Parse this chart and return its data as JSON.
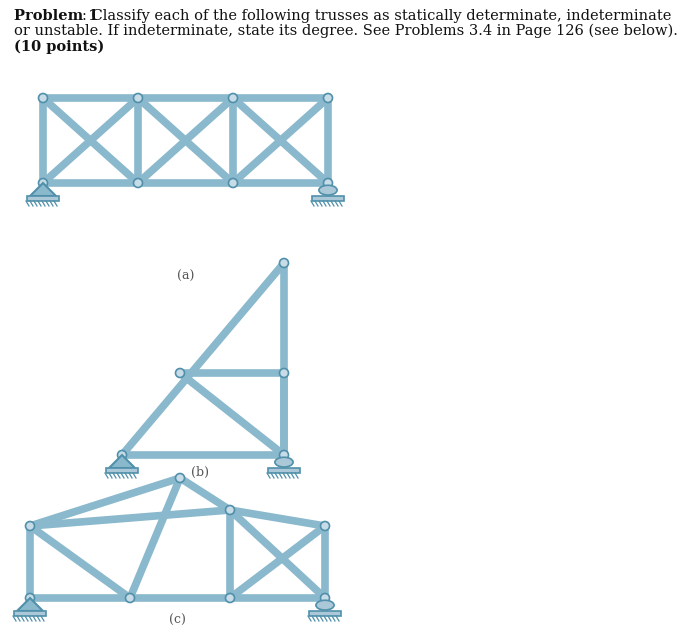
{
  "bg_color": "#ffffff",
  "tc": "#8ab8cc",
  "ec": "#5090aa",
  "jc": "#c8dce8",
  "lw": 5.5,
  "label_a": "(a)",
  "label_b": "(b)",
  "label_c": "(c)",
  "header_bold": "Problem 1",
  "header_rest1": ": Classify each of the following trusses as statically determinate, indeterminate",
  "header_rest2": "or unstable. If indeterminate, state its degree. See Problems 3.4 in Page 126 (see below).",
  "header_rest3": "(10 points)"
}
